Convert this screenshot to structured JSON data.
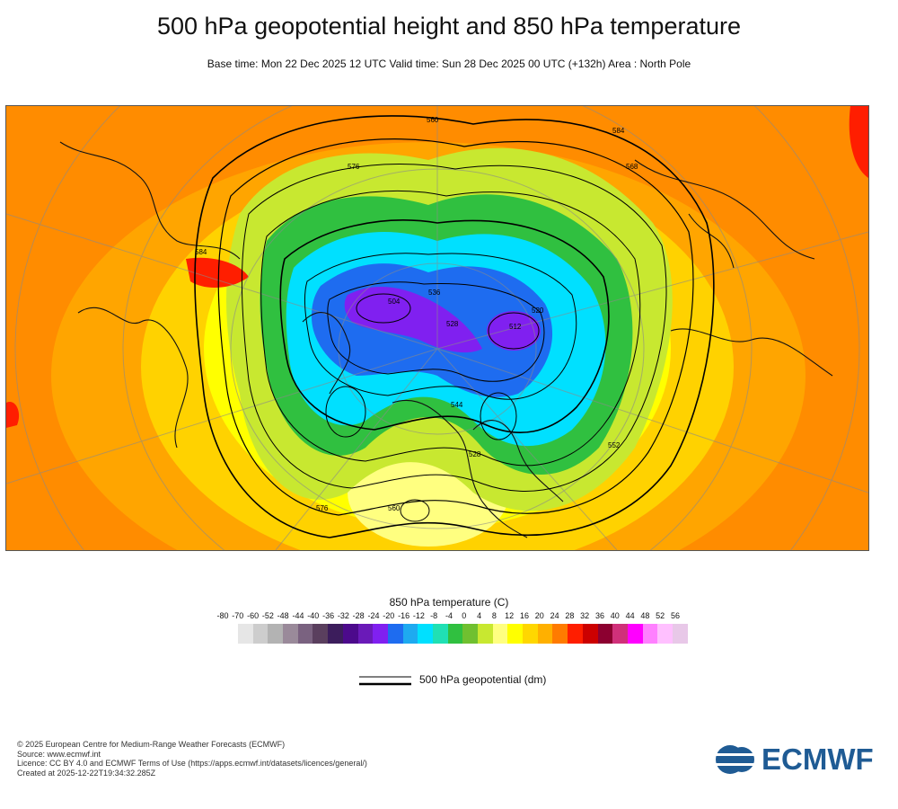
{
  "title": "500 hPa geopotential height and 850 hPa temperature",
  "subtitle": "Base time: Mon 22 Dec 2025 12 UTC Valid time: Sun 28 Dec 2025 00 UTC (+132h) Area : North Pole",
  "colorbar": {
    "title": "850 hPa temperature (C)",
    "ticks": [
      "-80",
      "-70",
      "-60",
      "-52",
      "-48",
      "-44",
      "-40",
      "-36",
      "-32",
      "-28",
      "-24",
      "-20",
      "-16",
      "-12",
      "-8",
      "-4",
      "0",
      "4",
      "8",
      "12",
      "16",
      "20",
      "24",
      "28",
      "32",
      "36",
      "40",
      "44",
      "48",
      "52",
      "56"
    ],
    "colors": [
      "#e6e6e6",
      "#cdcdcd",
      "#b3b3b3",
      "#9a8a9a",
      "#7a6280",
      "#5a3f5e",
      "#3c1d5c",
      "#4c0a8c",
      "#6a1ab8",
      "#8020f0",
      "#1e6cf0",
      "#1eaaf0",
      "#00e0ff",
      "#20e0b4",
      "#30c040",
      "#70c030",
      "#c8e830",
      "#ffff80",
      "#ffff00",
      "#ffd700",
      "#ffb000",
      "#ff7b00",
      "#ff1e00",
      "#cc0000",
      "#8c0030",
      "#d0307a",
      "#ff00ff",
      "#ff80ff",
      "#ffc0ff",
      "#e8c8e8"
    ]
  },
  "legend": {
    "label": "500 hPa geopotential (dm)"
  },
  "contour_labels": [
    "560",
    "584",
    "576",
    "504",
    "512",
    "520",
    "528",
    "536",
    "544",
    "552",
    "568",
    "576",
    "584",
    "560",
    "528"
  ],
  "footer": [
    "© 2025 European Centre for Medium-Range Weather Forecasts (ECMWF)",
    "Source: www.ecmwf.int",
    "Licence: CC BY 4.0 and ECMWF Terms of Use (https://apps.ecmwf.int/datasets/licences/general/)",
    "Created at 2025-12-22T19:34:32.285Z"
  ],
  "logo": {
    "text": "ECMWF",
    "color": "#1f5b94"
  }
}
